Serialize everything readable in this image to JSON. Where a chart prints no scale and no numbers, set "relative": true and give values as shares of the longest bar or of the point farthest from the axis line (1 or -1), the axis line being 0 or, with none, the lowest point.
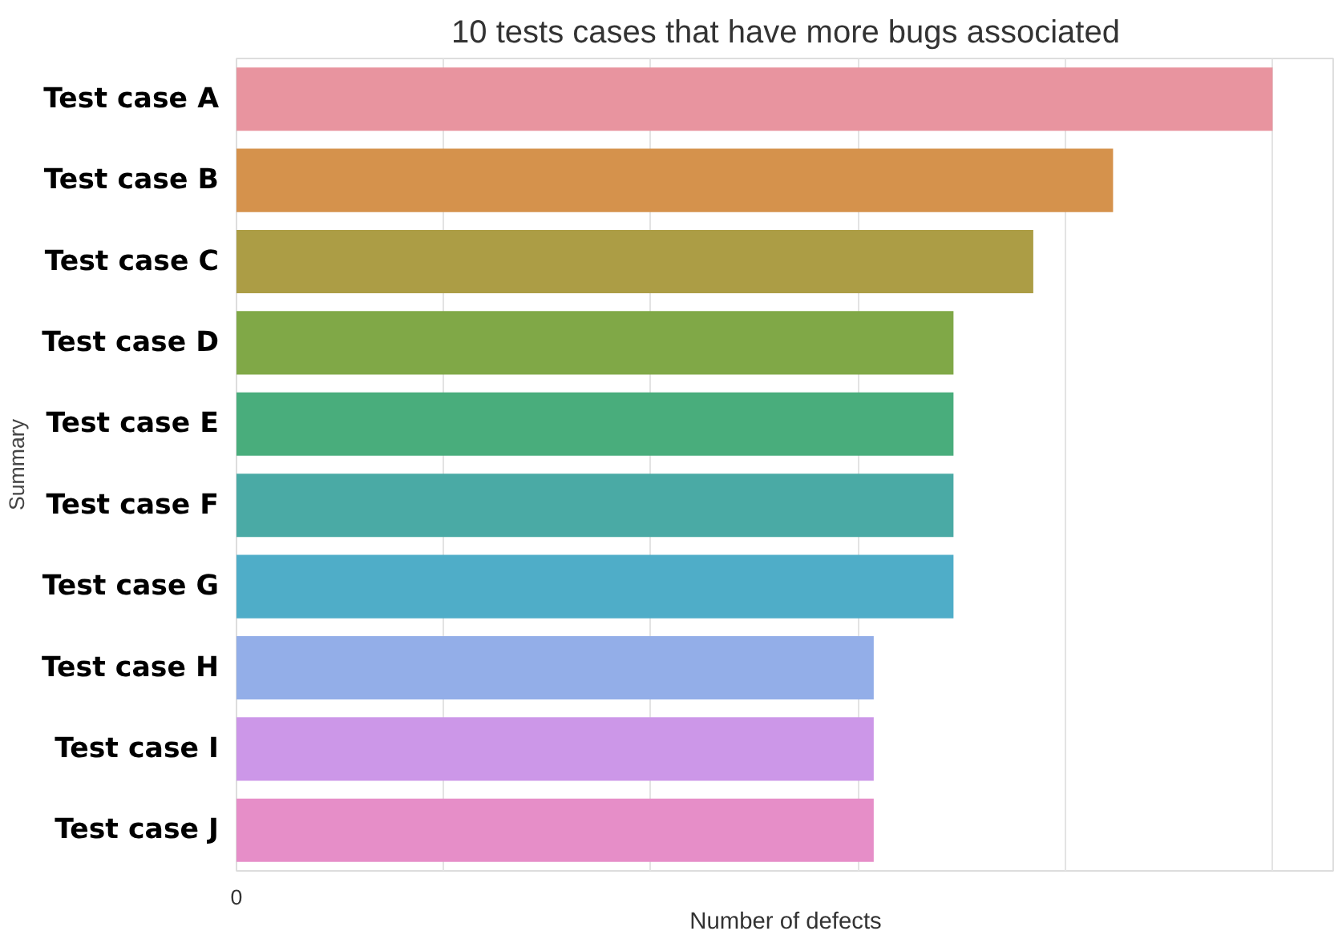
{
  "chart_data": {
    "type": "bar",
    "orientation": "horizontal",
    "relative": true,
    "title": "10 tests cases that have more bugs associated",
    "xlabel": "Number of defects",
    "ylabel": "Summary",
    "categories": [
      "Test case A",
      "Test case B",
      "Test case C",
      "Test case D",
      "Test case E",
      "Test case F",
      "Test case G",
      "Test case H",
      "Test case I",
      "Test case J"
    ],
    "values": [
      1,
      0.846,
      0.769,
      0.692,
      0.692,
      0.692,
      0.692,
      0.615,
      0.615,
      0.615
    ],
    "colors": [
      "#e8949f",
      "#d5924c",
      "#ac9d45",
      "#80a847",
      "#49ad7c",
      "#4aaaa5",
      "#4fadc8",
      "#93aee8",
      "#cc97e8",
      "#e68ec8"
    ],
    "grid": true,
    "annotations": [
      "0"
    ]
  }
}
